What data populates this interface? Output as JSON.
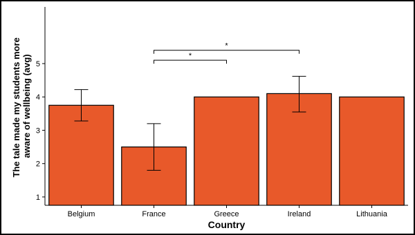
{
  "chart_data": {
    "type": "bar",
    "title": "",
    "xlabel": "Country",
    "ylabel_lines": [
      "The tale made my students more",
      "aware of wellbeing (avg)"
    ],
    "categories": [
      "Belgium",
      "France",
      "Greece",
      "Ireland",
      "Lithuania"
    ],
    "values": [
      3.75,
      2.5,
      4.0,
      4.1,
      4.0
    ],
    "error_low": [
      3.28,
      1.8,
      4.0,
      3.55,
      4.0
    ],
    "error_high": [
      4.22,
      3.2,
      4.0,
      4.62,
      4.0
    ],
    "bar_color": "#E8592A",
    "ylim": [
      0.75,
      6.7
    ],
    "yticks": [
      1,
      2,
      3,
      4,
      5
    ],
    "grid": false,
    "significance": [
      {
        "from": "France",
        "to": "Greece",
        "y": 5.1,
        "label": "*"
      },
      {
        "from": "France",
        "to": "Ireland",
        "y": 5.4,
        "label": "*"
      }
    ]
  }
}
